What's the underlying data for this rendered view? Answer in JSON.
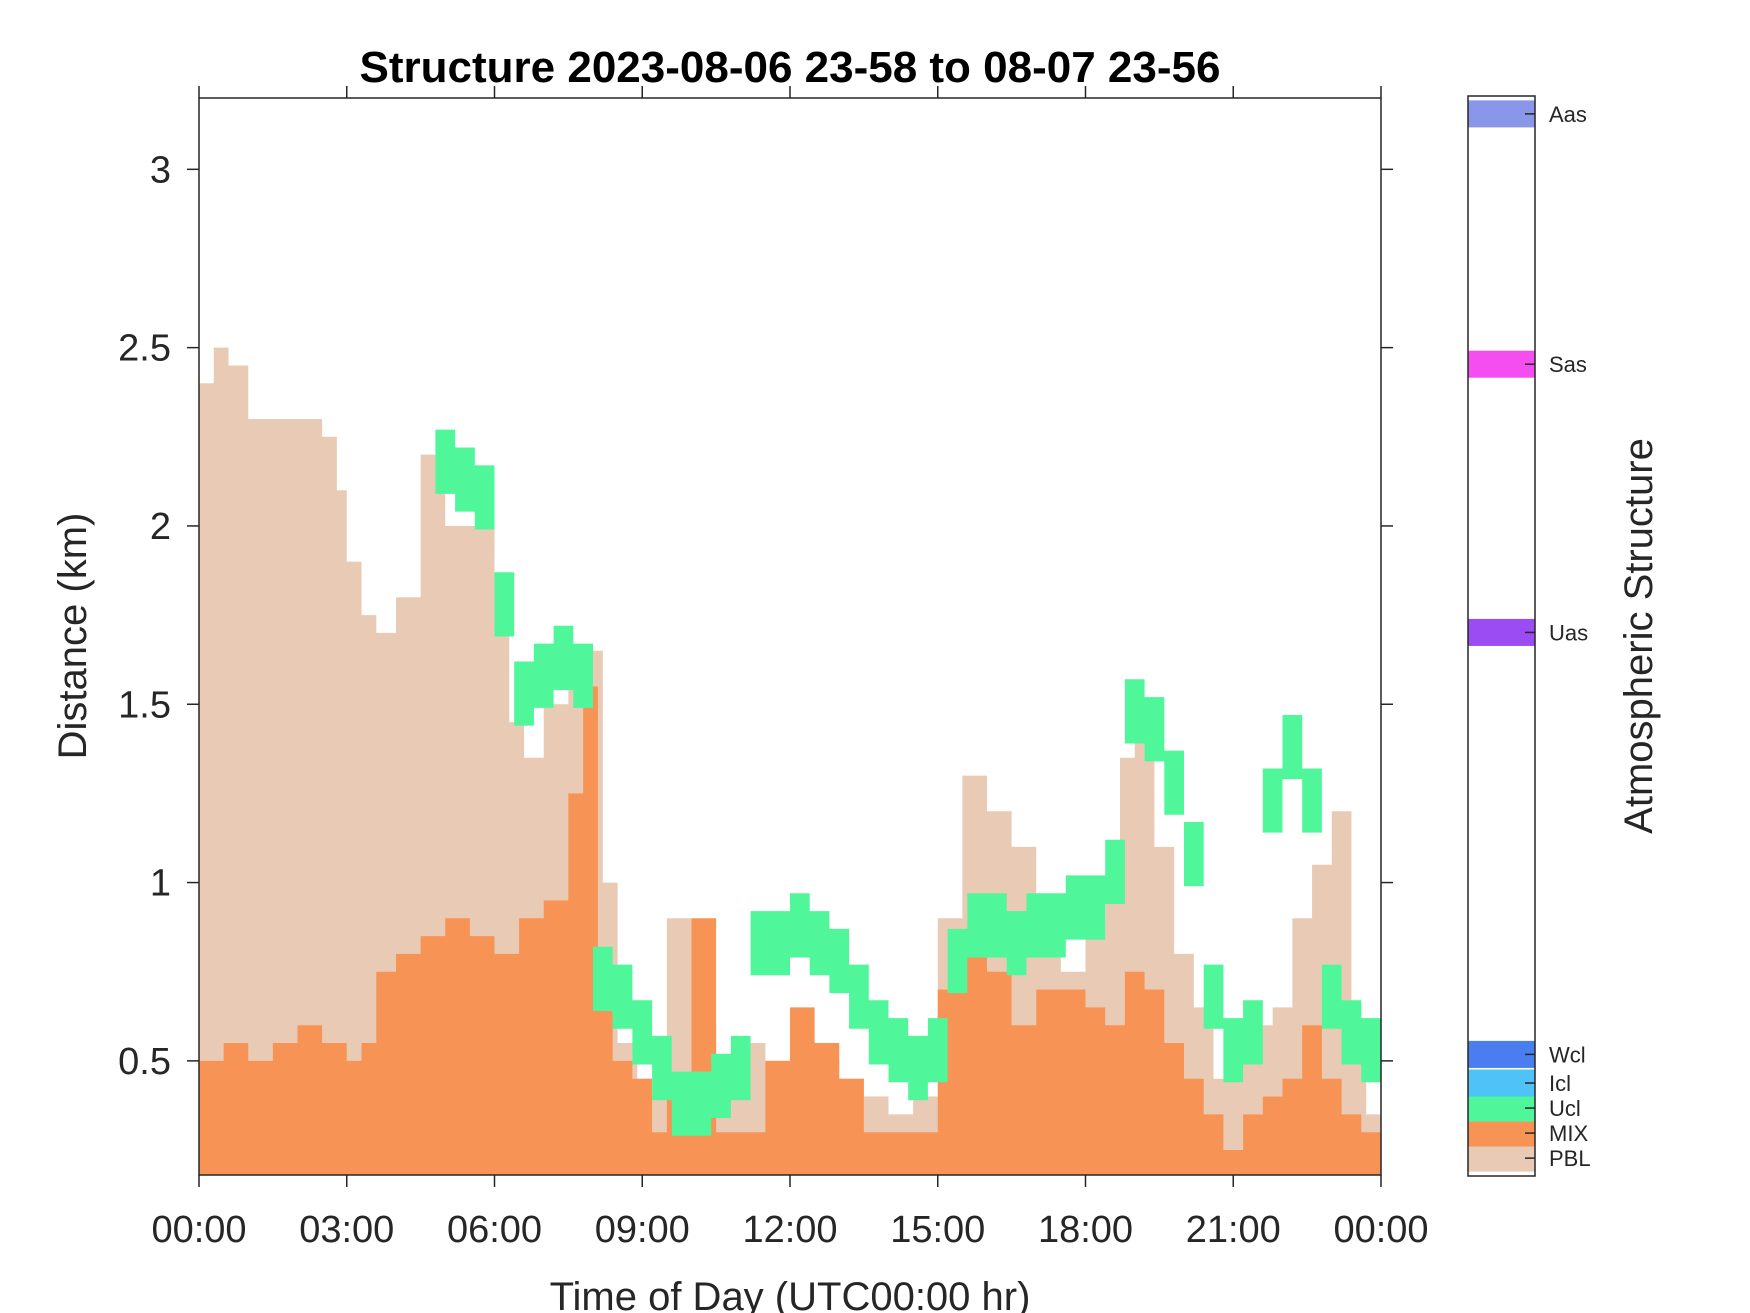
{
  "chart_data": {
    "type": "area",
    "title": "Structure 2023-08-06 23-58 to 08-07 23-56",
    "xlabel": "Time of Day (UTC00:00 hr)",
    "ylabel": "Distance (km)",
    "xlim_hours": [
      0,
      24
    ],
    "ylim": [
      0.18,
      3.2
    ],
    "x_ticks": [
      "00:00",
      "03:00",
      "06:00",
      "09:00",
      "12:00",
      "15:00",
      "18:00",
      "21:00",
      "00:00"
    ],
    "y_ticks": [
      "0.5",
      "1",
      "1.5",
      "2",
      "2.5",
      "3"
    ],
    "grid": false,
    "colorbar": {
      "label": "Atmospheric Structure",
      "categories": [
        {
          "name": "PBL",
          "color": "#e9cbb5",
          "level": 0.23
        },
        {
          "name": "MIX",
          "color": "#f79455",
          "level": 0.3
        },
        {
          "name": "Ucl",
          "color": "#4ff79a",
          "level": 0.37
        },
        {
          "name": "Icl",
          "color": "#4fc3f7",
          "level": 0.44
        },
        {
          "name": "Wcl",
          "color": "#4a7ef0",
          "level": 0.52
        },
        {
          "name": "Uas",
          "color": "#9b4df3",
          "level": 1.7
        },
        {
          "name": "Sas",
          "color": "#f54ef0",
          "level": 2.45
        },
        {
          "name": "Aas",
          "color": "#8a96e8",
          "level": 3.15
        }
      ]
    },
    "series": [
      {
        "name": "PBL",
        "x_hours": [
          0,
          0.3,
          0.6,
          1.0,
          1.5,
          2.0,
          2.5,
          2.8,
          3.0,
          3.3,
          3.6,
          4.0,
          4.5,
          5.0,
          5.5,
          6.0,
          6.3,
          6.6,
          7.0,
          7.5,
          7.9,
          8.2,
          8.5,
          8.9,
          9.2,
          9.5,
          10.0,
          10.5,
          11.0,
          11.5,
          12.0,
          12.5,
          13.0,
          13.5,
          14.0,
          14.5,
          15.0,
          15.5,
          16.0,
          16.5,
          17.0,
          17.5,
          18.0,
          18.4,
          18.7,
          19.0,
          19.4,
          19.8,
          20.2,
          20.6,
          21.0,
          21.4,
          21.8,
          22.2,
          22.6,
          23.0,
          23.4,
          23.7,
          24.0
        ],
        "values": [
          2.4,
          2.5,
          2.45,
          2.3,
          2.3,
          2.3,
          2.25,
          2.1,
          1.9,
          1.75,
          1.7,
          1.8,
          2.2,
          2.0,
          2.0,
          1.7,
          1.45,
          1.35,
          1.5,
          1.55,
          1.65,
          1.0,
          0.55,
          0.45,
          0.4,
          0.9,
          0.6,
          0.45,
          0.55,
          0.5,
          0.55,
          0.5,
          0.45,
          0.4,
          0.35,
          0.4,
          0.9,
          1.3,
          1.2,
          1.1,
          0.85,
          0.75,
          0.9,
          1.0,
          1.35,
          1.4,
          1.1,
          0.8,
          0.65,
          0.45,
          0.5,
          0.6,
          0.65,
          0.9,
          1.05,
          1.2,
          0.55,
          0.35,
          0.3
        ]
      },
      {
        "name": "MIX",
        "x_hours": [
          0,
          0.5,
          1.0,
          1.5,
          2.0,
          2.5,
          3.0,
          3.3,
          3.6,
          4.0,
          4.5,
          5.0,
          5.5,
          6.0,
          6.5,
          7.0,
          7.5,
          7.8,
          8.1,
          8.4,
          8.8,
          9.2,
          9.5,
          10.0,
          10.5,
          11.0,
          11.5,
          12.0,
          12.5,
          13.0,
          13.5,
          14.0,
          14.5,
          15.0,
          15.5,
          16.0,
          16.5,
          17.0,
          17.5,
          18.0,
          18.4,
          18.8,
          19.2,
          19.6,
          20.0,
          20.4,
          20.8,
          21.2,
          21.6,
          22.0,
          22.4,
          22.8,
          23.2,
          23.6,
          24.0
        ],
        "values": [
          0.5,
          0.55,
          0.5,
          0.55,
          0.6,
          0.55,
          0.5,
          0.55,
          0.75,
          0.8,
          0.85,
          0.9,
          0.85,
          0.8,
          0.9,
          0.95,
          1.25,
          1.55,
          0.7,
          0.5,
          0.45,
          0.3,
          0.4,
          0.9,
          0.3,
          0.3,
          0.5,
          0.65,
          0.55,
          0.45,
          0.3,
          0.3,
          0.3,
          0.7,
          0.85,
          0.75,
          0.6,
          0.7,
          0.7,
          0.65,
          0.6,
          0.75,
          0.7,
          0.55,
          0.45,
          0.35,
          0.25,
          0.35,
          0.4,
          0.45,
          0.6,
          0.45,
          0.35,
          0.3,
          0.28
        ]
      },
      {
        "name": "Ucl",
        "x_hours": [
          4.8,
          5.2,
          5.6,
          6.0,
          6.4,
          6.8,
          7.2,
          7.6,
          8.0,
          8.4,
          8.8,
          9.2,
          9.6,
          10.0,
          10.4,
          10.8,
          11.2,
          11.6,
          12.0,
          12.4,
          12.8,
          13.2,
          13.6,
          14.0,
          14.4,
          14.8,
          15.2,
          15.6,
          16.0,
          16.4,
          16.8,
          17.2,
          17.6,
          18.0,
          18.4,
          18.8,
          19.2,
          19.6,
          20.0,
          20.4,
          20.8,
          21.2,
          21.6,
          22.0,
          22.4,
          22.8,
          23.2,
          23.6
        ],
        "values": [
          2.15,
          2.1,
          2.05,
          1.75,
          1.5,
          1.55,
          1.6,
          1.55,
          0.7,
          0.65,
          0.55,
          0.45,
          0.35,
          0.35,
          0.4,
          0.45,
          0.8,
          0.8,
          0.85,
          0.8,
          0.75,
          0.65,
          0.55,
          0.5,
          0.45,
          0.5,
          0.75,
          0.85,
          0.85,
          0.8,
          0.85,
          0.85,
          0.9,
          0.9,
          1.0,
          1.45,
          1.4,
          1.25,
          1.05,
          0.65,
          0.5,
          0.55,
          1.2,
          1.35,
          1.2,
          0.65,
          0.55,
          0.5
        ]
      }
    ]
  }
}
